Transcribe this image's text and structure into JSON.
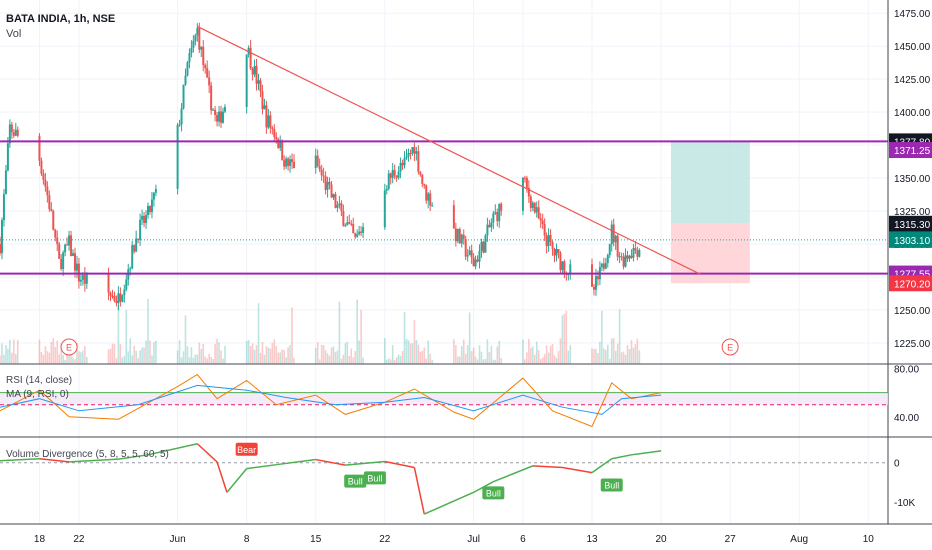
{
  "header": {
    "title": "BATA INDIA, 1h, NSE",
    "volume_label": "Vol"
  },
  "rsi_panel": {
    "label_rsi": "RSI (14, close)",
    "label_ma": "MA (9, RSI, 0)"
  },
  "vd_panel": {
    "label": "Volume Divergence (5, 8, 5, 5, 60, 5)"
  },
  "colors": {
    "up": "#26a69a",
    "down": "#ef5350",
    "trendline": "#ef5350",
    "hline": "#9c27b0",
    "target_zone": "#b2dfdb",
    "stop_zone": "#ffcdd2",
    "rsi": "#f57c00",
    "rsi_ma": "#2196f3",
    "rsi_band": "#f3e5f5",
    "vd_up": "#4caf50",
    "vd_down": "#f44336"
  },
  "chart_data": [
    {
      "type": "candlestick",
      "title": "BATA INDIA, 1h, NSE",
      "ylim": [
        1212,
        1482
      ],
      "y_ticks": [
        1225,
        1250,
        1275,
        1300,
        1325,
        1350,
        1375,
        1400,
        1425,
        1450,
        1475
      ],
      "y_tick_labels": [
        "1225.00",
        "1250.00",
        "1275.00",
        "1300.00",
        "1325.00",
        "1350.00",
        "1375.00",
        "1400.00",
        "1425.00",
        "1450.00",
        "1475.00"
      ],
      "x_range": [
        "2020-05-14",
        "2020-08-12"
      ],
      "x_ticks": [
        {
          "date": "2020-05-18",
          "label": "18"
        },
        {
          "date": "2020-05-22",
          "label": "22"
        },
        {
          "date": "2020-06-01",
          "label": "Jun"
        },
        {
          "date": "2020-06-08",
          "label": "8"
        },
        {
          "date": "2020-06-15",
          "label": "15"
        },
        {
          "date": "2020-06-22",
          "label": "22"
        },
        {
          "date": "2020-07-01",
          "label": "Jul"
        },
        {
          "date": "2020-07-06",
          "label": "6"
        },
        {
          "date": "2020-07-13",
          "label": "13"
        },
        {
          "date": "2020-07-20",
          "label": "20"
        },
        {
          "date": "2020-07-27",
          "label": "27"
        },
        {
          "date": "2020-08-03",
          "label": "Aug"
        },
        {
          "date": "2020-08-10",
          "label": "10"
        }
      ],
      "price_path": [
        [
          "2020-05-14",
          1300
        ],
        [
          "2020-05-15",
          1388
        ],
        [
          "2020-05-18",
          1365
        ],
        [
          "2020-05-19",
          1330
        ],
        [
          "2020-05-20",
          1285
        ],
        [
          "2020-05-21",
          1300
        ],
        [
          "2020-05-22",
          1275
        ],
        [
          "2020-05-26",
          1258
        ],
        [
          "2020-05-27",
          1282
        ],
        [
          "2020-05-28",
          1310
        ],
        [
          "2020-05-29",
          1322
        ],
        [
          "2020-06-01",
          1385
        ],
        [
          "2020-06-02",
          1435
        ],
        [
          "2020-06-03",
          1462
        ],
        [
          "2020-06-04",
          1420
        ],
        [
          "2020-06-05",
          1390
        ],
        [
          "2020-06-08",
          1450
        ],
        [
          "2020-06-09",
          1425
        ],
        [
          "2020-06-10",
          1395
        ],
        [
          "2020-06-11",
          1382
        ],
        [
          "2020-06-12",
          1360
        ],
        [
          "2020-06-15",
          1362
        ],
        [
          "2020-06-16",
          1345
        ],
        [
          "2020-06-17",
          1330
        ],
        [
          "2020-06-18",
          1318
        ],
        [
          "2020-06-19",
          1302
        ],
        [
          "2020-06-22",
          1345
        ],
        [
          "2020-06-23",
          1355
        ],
        [
          "2020-06-24",
          1360
        ],
        [
          "2020-06-25",
          1375
        ],
        [
          "2020-06-26",
          1340
        ],
        [
          "2020-06-29",
          1310
        ],
        [
          "2020-06-30",
          1298
        ],
        [
          "2020-07-01",
          1285
        ],
        [
          "2020-07-02",
          1300
        ],
        [
          "2020-07-03",
          1320
        ],
        [
          "2020-07-06",
          1348
        ],
        [
          "2020-07-07",
          1330
        ],
        [
          "2020-07-08",
          1310
        ],
        [
          "2020-07-09",
          1295
        ],
        [
          "2020-07-10",
          1285
        ],
        [
          "2020-07-13",
          1262
        ],
        [
          "2020-07-14",
          1280
        ],
        [
          "2020-07-15",
          1310
        ],
        [
          "2020-07-16",
          1288
        ],
        [
          "2020-07-17",
          1295
        ],
        [
          "2020-07-20",
          1303.1
        ]
      ],
      "trendline": [
        [
          "2020-06-03",
          1465
        ],
        [
          "2020-07-24",
          1277
        ]
      ],
      "horizontal_lines": [
        1377.8,
        1277.55
      ],
      "long_position": {
        "start": "2020-07-21",
        "end": "2020-07-29",
        "entry": 1315.3,
        "target": 1377.8,
        "stop": 1270.2
      },
      "last_price": 1303.1,
      "last_price_label": "1303.10",
      "price_badges": [
        {
          "value": 1377.8,
          "label": "1377.80",
          "style": "dark"
        },
        {
          "value": 1371.25,
          "label": "1371.25",
          "style": "purple"
        },
        {
          "value": 1315.3,
          "label": "1315.30",
          "style": "dark"
        },
        {
          "value": 1303.1,
          "label": "1303.10",
          "style": "teal"
        },
        {
          "value": 1277.55,
          "label": "1277.55",
          "style": "purple"
        },
        {
          "value": 1270.2,
          "label": "1270.20",
          "style": "red"
        }
      ],
      "earnings_markers": [
        {
          "date": "2020-05-21",
          "label": "E"
        },
        {
          "date": "2020-07-27",
          "label": "E"
        }
      ]
    },
    {
      "type": "line",
      "title": "RSI (14, close)",
      "ylim": [
        25,
        82
      ],
      "y_ticks": [
        40,
        80
      ],
      "y_tick_labels": [
        "40.00",
        "80.00"
      ],
      "bands": [
        60,
        50
      ],
      "series": [
        {
          "name": "RSI (14, close)",
          "values": [
            [
              "2020-05-14",
              45
            ],
            [
              "2020-05-18",
              62
            ],
            [
              "2020-05-21",
              40
            ],
            [
              "2020-05-26",
              38
            ],
            [
              "2020-06-01",
              65
            ],
            [
              "2020-06-03",
              75
            ],
            [
              "2020-06-05",
              55
            ],
            [
              "2020-06-08",
              70
            ],
            [
              "2020-06-11",
              50
            ],
            [
              "2020-06-15",
              58
            ],
            [
              "2020-06-18",
              42
            ],
            [
              "2020-06-22",
              52
            ],
            [
              "2020-06-25",
              63
            ],
            [
              "2020-06-29",
              44
            ],
            [
              "2020-07-01",
              38
            ],
            [
              "2020-07-06",
              72
            ],
            [
              "2020-07-09",
              45
            ],
            [
              "2020-07-13",
              32
            ],
            [
              "2020-07-15",
              68
            ],
            [
              "2020-07-17",
              55
            ],
            [
              "2020-07-20",
              60
            ]
          ]
        },
        {
          "name": "MA (9, RSI, 0)",
          "values": [
            [
              "2020-05-14",
              48
            ],
            [
              "2020-05-18",
              55
            ],
            [
              "2020-05-22",
              45
            ],
            [
              "2020-05-28",
              50
            ],
            [
              "2020-06-03",
              66
            ],
            [
              "2020-06-08",
              62
            ],
            [
              "2020-06-12",
              56
            ],
            [
              "2020-06-17",
              50
            ],
            [
              "2020-06-22",
              52
            ],
            [
              "2020-06-26",
              56
            ],
            [
              "2020-07-01",
              45
            ],
            [
              "2020-07-06",
              58
            ],
            [
              "2020-07-10",
              48
            ],
            [
              "2020-07-14",
              42
            ],
            [
              "2020-07-16",
              55
            ],
            [
              "2020-07-20",
              58
            ]
          ]
        }
      ]
    },
    {
      "type": "line",
      "title": "Volume Divergence (5, 8, 5, 5, 60, 5)",
      "ylim": [
        -15000,
        6000
      ],
      "y_ticks": [
        0,
        -10000
      ],
      "y_tick_labels": [
        "0",
        "-10K"
      ],
      "series": [
        {
          "name": "Volume Divergence",
          "values": [
            [
              "2020-05-14",
              500
            ],
            [
              "2020-05-18",
              1000
            ],
            [
              "2020-05-21",
              200
            ],
            [
              "2020-05-26",
              900
            ],
            [
              "2020-05-29",
              2000
            ],
            [
              "2020-06-03",
              4800
            ],
            [
              "2020-06-05",
              200
            ],
            [
              "2020-06-06",
              -7500
            ],
            [
              "2020-06-08",
              -1500
            ],
            [
              "2020-06-11",
              -500
            ],
            [
              "2020-06-15",
              800
            ],
            [
              "2020-06-18",
              -600
            ],
            [
              "2020-06-22",
              300
            ],
            [
              "2020-06-25",
              -1200
            ],
            [
              "2020-06-26",
              -13000
            ],
            [
              "2020-07-01",
              -7500
            ],
            [
              "2020-07-03",
              -4800
            ],
            [
              "2020-07-07",
              -800
            ],
            [
              "2020-07-10",
              -1200
            ],
            [
              "2020-07-13",
              -2500
            ],
            [
              "2020-07-15",
              1000
            ],
            [
              "2020-07-17",
              2000
            ],
            [
              "2020-07-20",
              3000
            ]
          ]
        }
      ],
      "signals": [
        {
          "date": "2020-06-08",
          "value": 1500,
          "label": "Bear",
          "kind": "bear"
        },
        {
          "date": "2020-06-19",
          "value": -3000,
          "label": "Bull",
          "kind": "bull"
        },
        {
          "date": "2020-06-21",
          "value": -2200,
          "label": "Bull",
          "kind": "bull"
        },
        {
          "date": "2020-07-03",
          "value": -6000,
          "label": "Bull",
          "kind": "bull"
        },
        {
          "date": "2020-07-15",
          "value": -4000,
          "label": "Bull",
          "kind": "bull"
        }
      ]
    }
  ]
}
